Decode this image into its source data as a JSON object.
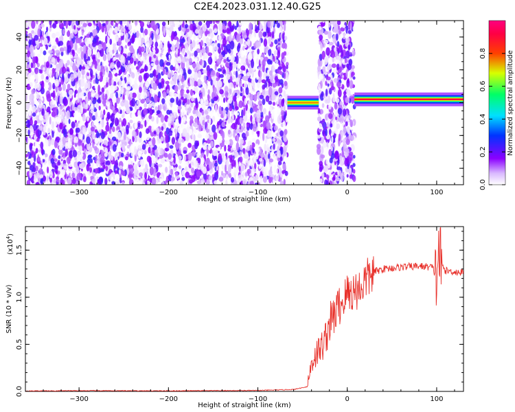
{
  "title": "C2E4.2023.031.12.40.G25",
  "colors": {
    "spectral_low": "#8b00ff",
    "line": "#e8302a",
    "axis": "#000000"
  },
  "chart_data": [
    {
      "type": "heatmap",
      "xlabel": "Height of straight line (km)",
      "ylabel": "Frequency (Hz)",
      "xlim": [
        -360,
        130
      ],
      "ylim": [
        -50,
        50
      ],
      "xticks": [
        -300,
        -200,
        -100,
        0,
        100
      ],
      "yticks": [
        -40,
        -20,
        0,
        20,
        40
      ],
      "colorbar": {
        "label": "Normalized spectral amplitude",
        "range": [
          0,
          1
        ],
        "ticks": [
          0.0,
          0.2,
          0.4,
          0.6,
          0.8
        ],
        "colormap": "white-purple-blue-cyan-green-yellow-red-magenta"
      },
      "regions": [
        {
          "x": [
            -360,
            -67
          ],
          "type": "noise",
          "level": 0.1
        },
        {
          "x": [
            -67,
            -32
          ],
          "type": "line",
          "freq": 0,
          "level": 0.75
        },
        {
          "x": [
            -32,
            8
          ],
          "type": "noise",
          "level": 0.1
        },
        {
          "x": [
            8,
            130
          ],
          "type": "line",
          "freq": 2,
          "level": 0.9
        }
      ],
      "grid": false
    },
    {
      "type": "line",
      "xlabel": "Height of straight line (km)",
      "ylabel": "SNR (10 * v/v)",
      "yscale_note": "(x10",
      "yscale_exp": "4",
      "yscale_close": ")",
      "xlim": [
        -360,
        130
      ],
      "ylim": [
        0,
        1.75
      ],
      "xticks": [
        -300,
        -200,
        -100,
        0,
        100
      ],
      "yticks": [
        0.0,
        0.5,
        1.0,
        1.5
      ],
      "series": [
        {
          "x": [
            -360,
            -300,
            -200,
            -100,
            -60,
            -45,
            -40,
            -35,
            -30,
            -25,
            -20,
            -15,
            -10,
            -5,
            0,
            5,
            10,
            15,
            20,
            25,
            30,
            40,
            60,
            80,
            95,
            100,
            102,
            105,
            110,
            120,
            130
          ],
          "y": [
            0.005,
            0.008,
            0.006,
            0.01,
            0.02,
            0.05,
            0.3,
            0.4,
            0.45,
            0.55,
            0.72,
            0.8,
            0.9,
            0.95,
            1.05,
            1.05,
            1.08,
            1.1,
            1.18,
            1.22,
            1.27,
            1.3,
            1.32,
            1.33,
            1.32,
            1.2,
            1.5,
            1.35,
            1.28,
            1.27,
            1.26
          ]
        }
      ],
      "grid": false
    }
  ]
}
